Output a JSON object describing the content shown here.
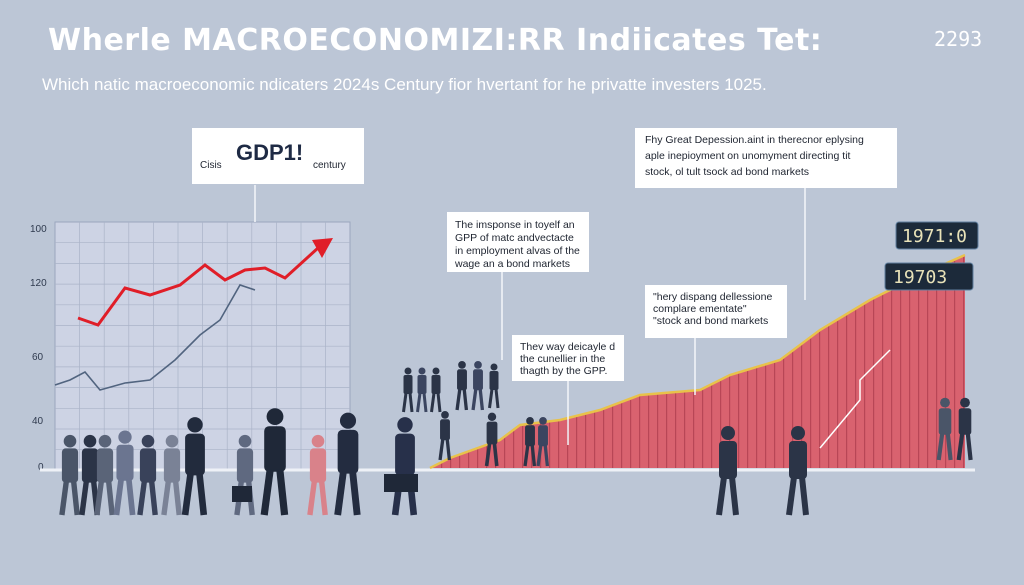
{
  "header": {
    "title": "Wherle MACROECONOMIZI:RR Indiicates Tet:",
    "badge": "2293",
    "subtitle": "Which natic macroeconomic ndicaters 2024s Century fior hvertant for he privatte investers 1025."
  },
  "axis_labels": [
    "100",
    "120",
    "60",
    "40",
    "0"
  ],
  "callouts": [
    {
      "left": "Cisis",
      "heading": "GDP1!",
      "right": "century"
    },
    {
      "lines": [
        "The imsponse in toyelf an",
        "GPP of matc andvectacte",
        "in employment alvas of the",
        "wage an a bond markets"
      ]
    },
    {
      "lines": [
        "Thev way deicayle d",
        "the cunellier in the",
        "thagth by the GPP."
      ]
    },
    {
      "lines": [
        "Fhy Great Depession.aint in therecnor eplysing",
        "aple inepioyment on unomyment directing tit",
        "stock, ol tult tsock ad bond markets"
      ]
    },
    {
      "lines": [
        "\"hery dispang dellessione",
        "complare ementate\"",
        "\"stock and bond markets"
      ]
    }
  ],
  "displays": [
    "1971:0",
    "19703"
  ]
}
